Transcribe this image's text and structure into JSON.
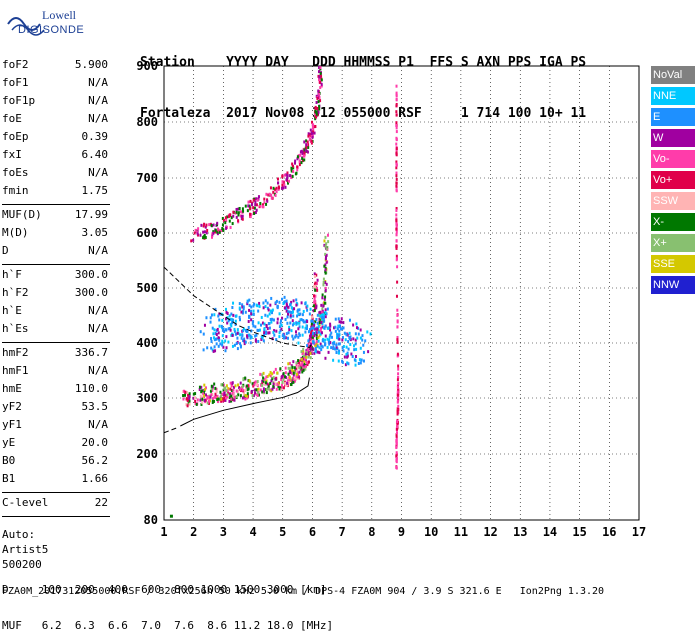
{
  "logo": {
    "line1": "Lowell",
    "line2": "DIGISONDE"
  },
  "header": {
    "line1": "Station    YYYY DAY   DDD HHMMSS P1  FFS S AXN PPS IGA PS",
    "line2": "Fortaleza  2017 Nov08 312 055000 RSF     1 714 100 10+ 11"
  },
  "params": [
    {
      "label": "foF2",
      "value": "5.900"
    },
    {
      "label": "foF1",
      "value": "N/A"
    },
    {
      "label": "foF1p",
      "value": "N/A"
    },
    {
      "label": "foE",
      "value": "N/A"
    },
    {
      "label": "foEp",
      "value": "0.39"
    },
    {
      "label": "fxI",
      "value": "6.40"
    },
    {
      "label": "foEs",
      "value": "N/A"
    },
    {
      "label": "fmin",
      "value": "1.75"
    },
    {
      "label": "MUF(D)",
      "value": "17.99"
    },
    {
      "label": "M(D)",
      "value": "3.05"
    },
    {
      "label": "D",
      "value": "N/A"
    },
    {
      "label": "h`F",
      "value": "300.0"
    },
    {
      "label": "h`F2",
      "value": "300.0"
    },
    {
      "label": "h`E",
      "value": "N/A"
    },
    {
      "label": "h`Es",
      "value": "N/A"
    },
    {
      "label": "hmF2",
      "value": "336.7"
    },
    {
      "label": "hmF1",
      "value": "N/A"
    },
    {
      "label": "hmE",
      "value": "110.0"
    },
    {
      "label": "yF2",
      "value": "53.5"
    },
    {
      "label": "yF1",
      "value": "N/A"
    },
    {
      "label": "yE",
      "value": "20.0"
    },
    {
      "label": "B0",
      "value": "56.2"
    },
    {
      "label": "B1",
      "value": "1.66"
    },
    {
      "label": "C-level",
      "value": "22"
    }
  ],
  "auto": {
    "line1": "Auto:",
    "line2": "Artist5",
    "line3": "500200"
  },
  "legend": [
    {
      "name": "NoVal",
      "color": "#808080"
    },
    {
      "name": "NNE",
      "color": "#00c8ff"
    },
    {
      "name": "E",
      "color": "#1e90ff"
    },
    {
      "name": "W",
      "color": "#a000a0"
    },
    {
      "name": "Vo-",
      "color": "#ff3caa"
    },
    {
      "name": "Vo+",
      "color": "#e0004a"
    },
    {
      "name": "SSW",
      "color": "#ffb4b4"
    },
    {
      "name": "X-",
      "color": "#007800"
    },
    {
      "name": "X+",
      "color": "#88c070"
    },
    {
      "name": "SSE",
      "color": "#d4c800"
    },
    {
      "name": "NNW",
      "color": "#2020d0"
    }
  ],
  "bottom": {
    "line1": "D     100  200  400  600  800 1000 1500 3000 [km]",
    "line2": "MUF   6.2  6.3  6.6  7.0  7.6  8.6 11.2 18.0 [MHz]"
  },
  "footer": "FZA0M_2017312055000.RSF / 320fx256h 50 kHz 5.0 km / DPS-4 FZA0M 904 / 3.9 S 321.6 E   Ion2Png 1.3.20",
  "chart_data": {
    "type": "scatter",
    "xlabel": "",
    "ylabel": "",
    "xlim": [
      1,
      17
    ],
    "ylim": [
      80,
      900
    ],
    "xticks": [
      1,
      2,
      3,
      4,
      5,
      6,
      7,
      8,
      9,
      10,
      11,
      12,
      13,
      14,
      15,
      16,
      17
    ],
    "yticks": [
      80,
      200,
      300,
      400,
      500,
      600,
      700,
      800,
      900
    ],
    "series": [
      {
        "role": "O trace F2",
        "points": [
          [
            1.6,
            302
          ],
          [
            2,
            304
          ],
          [
            2.5,
            306
          ],
          [
            3,
            309
          ],
          [
            3.5,
            313
          ],
          [
            4,
            318
          ],
          [
            4.5,
            324
          ],
          [
            5,
            333
          ],
          [
            5.3,
            342
          ],
          [
            5.5,
            352
          ],
          [
            5.7,
            366
          ],
          [
            5.85,
            385
          ],
          [
            5.95,
            420
          ],
          [
            6.05,
            470
          ],
          [
            6.1,
            520
          ]
        ]
      },
      {
        "role": "X trace F2",
        "points": [
          [
            2.2,
            310
          ],
          [
            2.6,
            312
          ],
          [
            3.1,
            316
          ],
          [
            3.6,
            320
          ],
          [
            4.1,
            326
          ],
          [
            4.6,
            334
          ],
          [
            5.1,
            346
          ],
          [
            5.5,
            360
          ],
          [
            5.8,
            380
          ],
          [
            6.05,
            405
          ],
          [
            6.25,
            440
          ],
          [
            6.35,
            480
          ],
          [
            6.4,
            540
          ],
          [
            6.45,
            600
          ]
        ]
      },
      {
        "role": "Multiple hop",
        "points": [
          [
            1.9,
            598
          ],
          [
            2.5,
            608
          ],
          [
            3,
            620
          ],
          [
            3.5,
            634
          ],
          [
            4,
            650
          ],
          [
            4.5,
            670
          ],
          [
            5,
            696
          ],
          [
            5.4,
            722
          ],
          [
            5.7,
            748
          ],
          [
            5.95,
            780
          ],
          [
            6.1,
            820
          ],
          [
            6.2,
            860
          ],
          [
            6.25,
            900
          ]
        ]
      },
      {
        "role": "E-region spread",
        "points": [
          [
            2.6,
            420
          ],
          [
            3.2,
            430
          ],
          [
            3.8,
            440
          ],
          [
            4.5,
            445
          ],
          [
            5.2,
            450
          ],
          [
            5.8,
            440
          ],
          [
            6.4,
            420
          ],
          [
            7,
            405
          ],
          [
            7.6,
            395
          ]
        ]
      },
      {
        "role": "Interference column",
        "points": [
          [
            8.8,
            850
          ],
          [
            8.8,
            760
          ],
          [
            8.8,
            640
          ],
          [
            8.8,
            580
          ],
          [
            8.85,
            340
          ],
          [
            8.85,
            280
          ],
          [
            8.8,
            230
          ],
          [
            8.8,
            180
          ]
        ]
      }
    ],
    "profile_line": [
      [
        1.55,
        250
      ],
      [
        2,
        262
      ],
      [
        3,
        278
      ],
      [
        4,
        290
      ],
      [
        5,
        301
      ],
      [
        5.5,
        310
      ],
      [
        5.85,
        322
      ],
      [
        5.9,
        337
      ]
    ],
    "dashed_line": [
      [
        1,
        538
      ],
      [
        1.5,
        512
      ],
      [
        2,
        486
      ],
      [
        2.5,
        468
      ],
      [
        3,
        450
      ],
      [
        3.5,
        432
      ],
      [
        4,
        420
      ],
      [
        4.5,
        410
      ],
      [
        5,
        400
      ],
      [
        5.5,
        395
      ],
      [
        5.9,
        392
      ],
      [
        6,
        400
      ]
    ],
    "dashed_lower": [
      [
        1,
        238
      ],
      [
        1.5,
        248
      ]
    ],
    "dot_points": [
      [
        1.2,
        86
      ]
    ]
  }
}
